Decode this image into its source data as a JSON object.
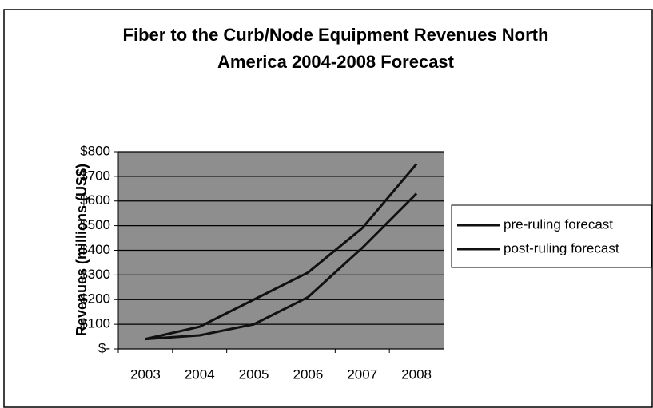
{
  "chart_data": {
    "type": "line",
    "title": "Fiber to the Curb/Node Equipment Revenues North",
    "subtitle": "America 2004-2008 Forecast",
    "y_label": "Revenues (millions (US$)",
    "categories": [
      "2003",
      "2004",
      "2005",
      "2006",
      "2007",
      "2008"
    ],
    "series": [
      {
        "name": "pre-ruling forecast",
        "color": "#111111",
        "values": [
          40,
          90,
          200,
          310,
          490,
          750
        ]
      },
      {
        "name": "post-ruling forecast",
        "color": "#111111",
        "values": [
          40,
          55,
          100,
          210,
          410,
          630
        ]
      }
    ],
    "ylim": [
      0,
      800
    ],
    "yticks": [
      {
        "value": 0,
        "label": "$-"
      },
      {
        "value": 100,
        "label": "$100"
      },
      {
        "value": 200,
        "label": "$200"
      },
      {
        "value": 300,
        "label": "$300"
      },
      {
        "value": 400,
        "label": "$400"
      },
      {
        "value": 500,
        "label": "$500"
      },
      {
        "value": 600,
        "label": "$600"
      },
      {
        "value": 700,
        "label": "$700"
      },
      {
        "value": 800,
        "label": "$800"
      }
    ],
    "grid": true,
    "legend": "right"
  }
}
